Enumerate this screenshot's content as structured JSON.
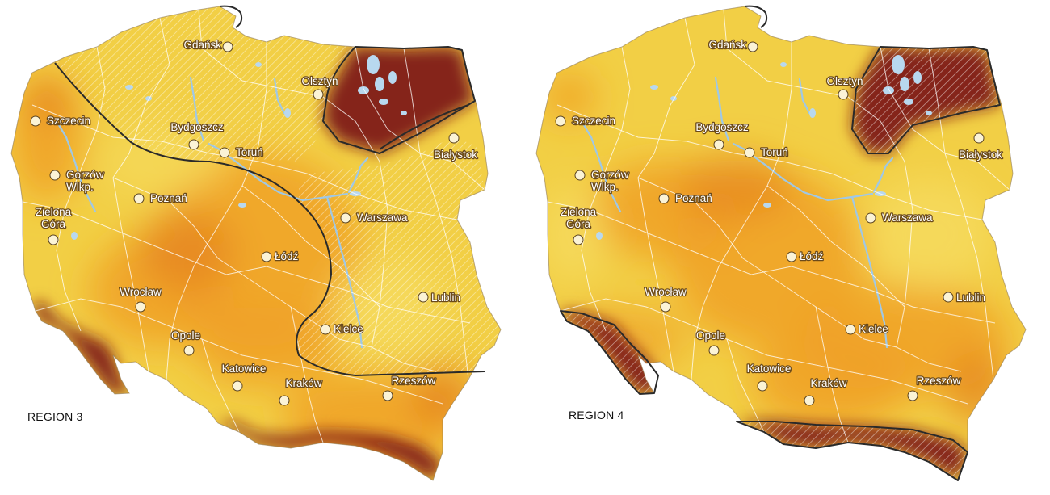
{
  "maps": [
    {
      "id": "region-3",
      "label": "REGION 3",
      "highlight": {
        "north": "full",
        "middle": "band",
        "south": "full"
      }
    },
    {
      "id": "region-4",
      "label": "REGION 4",
      "highlight": {
        "north": "full",
        "middle": "none",
        "south": "full"
      }
    }
  ],
  "cities": [
    "Gdańsk",
    "Olsztyn",
    "Szczecin",
    "Bydgoszcz",
    "Toruń",
    "Białystok",
    "Gorzów\nWlkp.",
    "Poznań",
    "Warszawa",
    "Zielona\nGóra",
    "Łódź",
    "Wrocław",
    "Lublin",
    "Opole",
    "Kielce",
    "Katowice",
    "Kraków",
    "Rzeszów"
  ],
  "colors": {
    "yellow": "#f2cf45",
    "light_yellow": "#f6dd62",
    "orange": "#f0a126",
    "deep_orange": "#e47f1d",
    "dark_red": "#7d1a14",
    "boundary": "#2a2a2a",
    "borders": "#ffffff",
    "background": "#ffffff"
  }
}
